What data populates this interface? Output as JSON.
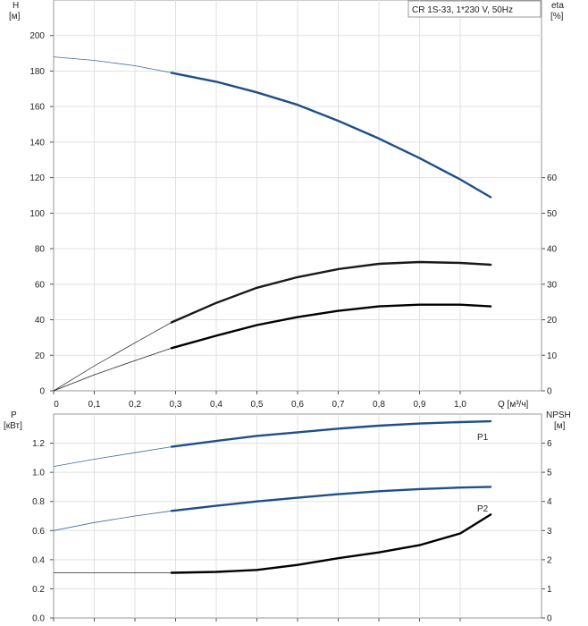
{
  "chart_data": [
    {
      "type": "line",
      "title": "CR 1S-33, 1*230 V, 50Hz",
      "x": {
        "label": "Q [м³/ч]",
        "range": [
          0,
          1.2
        ],
        "ticks": [
          0,
          0.1,
          0.2,
          0.3,
          0.4,
          0.5,
          0.6,
          0.7,
          0.8,
          0.9,
          1.0
        ],
        "tick_labels": [
          "0",
          "0,1",
          "0,2",
          "0,3",
          "0,4",
          "0,5",
          "0,6",
          "0,7",
          "0,8",
          "0,9",
          "1,0"
        ]
      },
      "y_left": {
        "label_line1": "H",
        "label_line2": "[м]",
        "range": [
          0,
          220
        ],
        "ticks": [
          0,
          20,
          40,
          60,
          80,
          100,
          120,
          140,
          160,
          180,
          200
        ],
        "tick_labels": [
          "0",
          "20",
          "40",
          "60",
          "80",
          "100",
          "120",
          "140",
          "160",
          "180",
          "200"
        ]
      },
      "y_right": {
        "label_line1": "eta",
        "label_line2": "[%]",
        "range": [
          0,
          110
        ],
        "ticks": [
          0,
          10,
          20,
          30,
          40,
          50,
          60
        ],
        "tick_labels": [
          "0",
          "10",
          "20",
          "30",
          "40",
          "50",
          "60"
        ]
      },
      "grid": true,
      "duty_range": [
        0.29,
        1.075
      ],
      "series": [
        {
          "axis": "left",
          "color": "#1f4e89",
          "x": [
            0,
            0.1,
            0.2,
            0.29,
            0.4,
            0.5,
            0.6,
            0.7,
            0.8,
            0.9,
            1.0,
            1.075
          ],
          "values": [
            188,
            186,
            183,
            179,
            174,
            168,
            161,
            152,
            142,
            131,
            119,
            109
          ]
        },
        {
          "axis": "left",
          "color": "#1a1a1a",
          "x": [
            0,
            0.1,
            0.2,
            0.29,
            0.4,
            0.5,
            0.6,
            0.7,
            0.8,
            0.9,
            1.0,
            1.075
          ],
          "values": [
            0,
            14,
            27,
            38.5,
            49.5,
            58,
            64,
            68.5,
            71.5,
            72.5,
            72,
            71
          ]
        },
        {
          "axis": "left",
          "color": "#000000",
          "x": [
            0,
            0.1,
            0.2,
            0.29,
            0.4,
            0.5,
            0.6,
            0.7,
            0.8,
            0.9,
            1.0,
            1.075
          ],
          "values": [
            0,
            9,
            17,
            24,
            31,
            37,
            41.5,
            45,
            47.5,
            48.5,
            48.5,
            47.5
          ]
        }
      ]
    },
    {
      "type": "line",
      "x": {
        "range": [
          0,
          1.2
        ],
        "ticks": [
          0,
          0.1,
          0.2,
          0.3,
          0.4,
          0.5,
          0.6,
          0.7,
          0.8,
          0.9,
          1.0
        ]
      },
      "y_left": {
        "label_line1": "P",
        "label_line2": "[кВт]",
        "range": [
          0,
          1.4
        ],
        "ticks": [
          0,
          0.2,
          0.4,
          0.6,
          0.8,
          1.0,
          1.2
        ],
        "tick_labels": [
          "0.0",
          "0.2",
          "0.4",
          "0.6",
          "0.8",
          "1.0",
          "1.2"
        ]
      },
      "y_right": {
        "label_line1": "NPSH",
        "label_line2": "[м]",
        "range": [
          0,
          7
        ],
        "ticks": [
          0,
          1,
          2,
          3,
          4,
          5,
          6
        ],
        "tick_labels": [
          "0",
          "1",
          "2",
          "3",
          "4",
          "5",
          "6"
        ]
      },
      "grid": true,
      "duty_range": [
        0.29,
        1.075
      ],
      "series": [
        {
          "name": "P1",
          "axis": "left",
          "color": "#1f4e89",
          "x": [
            0,
            0.1,
            0.2,
            0.29,
            0.4,
            0.5,
            0.6,
            0.7,
            0.8,
            0.9,
            1.0,
            1.075
          ],
          "values": [
            1.04,
            1.09,
            1.135,
            1.175,
            1.215,
            1.25,
            1.275,
            1.3,
            1.32,
            1.335,
            1.345,
            1.35
          ]
        },
        {
          "name": "P2",
          "axis": "left",
          "color": "#1f4e89",
          "x": [
            0,
            0.1,
            0.2,
            0.29,
            0.4,
            0.5,
            0.6,
            0.7,
            0.8,
            0.9,
            1.0,
            1.075
          ],
          "values": [
            0.6,
            0.655,
            0.7,
            0.735,
            0.77,
            0.8,
            0.825,
            0.85,
            0.87,
            0.885,
            0.895,
            0.9
          ]
        },
        {
          "axis": "right",
          "color": "#000000",
          "x": [
            0,
            0.1,
            0.2,
            0.29,
            0.4,
            0.5,
            0.6,
            0.7,
            0.8,
            0.9,
            1.0,
            1.075
          ],
          "values": [
            1.55,
            1.55,
            1.55,
            1.55,
            1.58,
            1.65,
            1.82,
            2.05,
            2.25,
            2.5,
            2.9,
            3.55
          ]
        }
      ]
    }
  ]
}
